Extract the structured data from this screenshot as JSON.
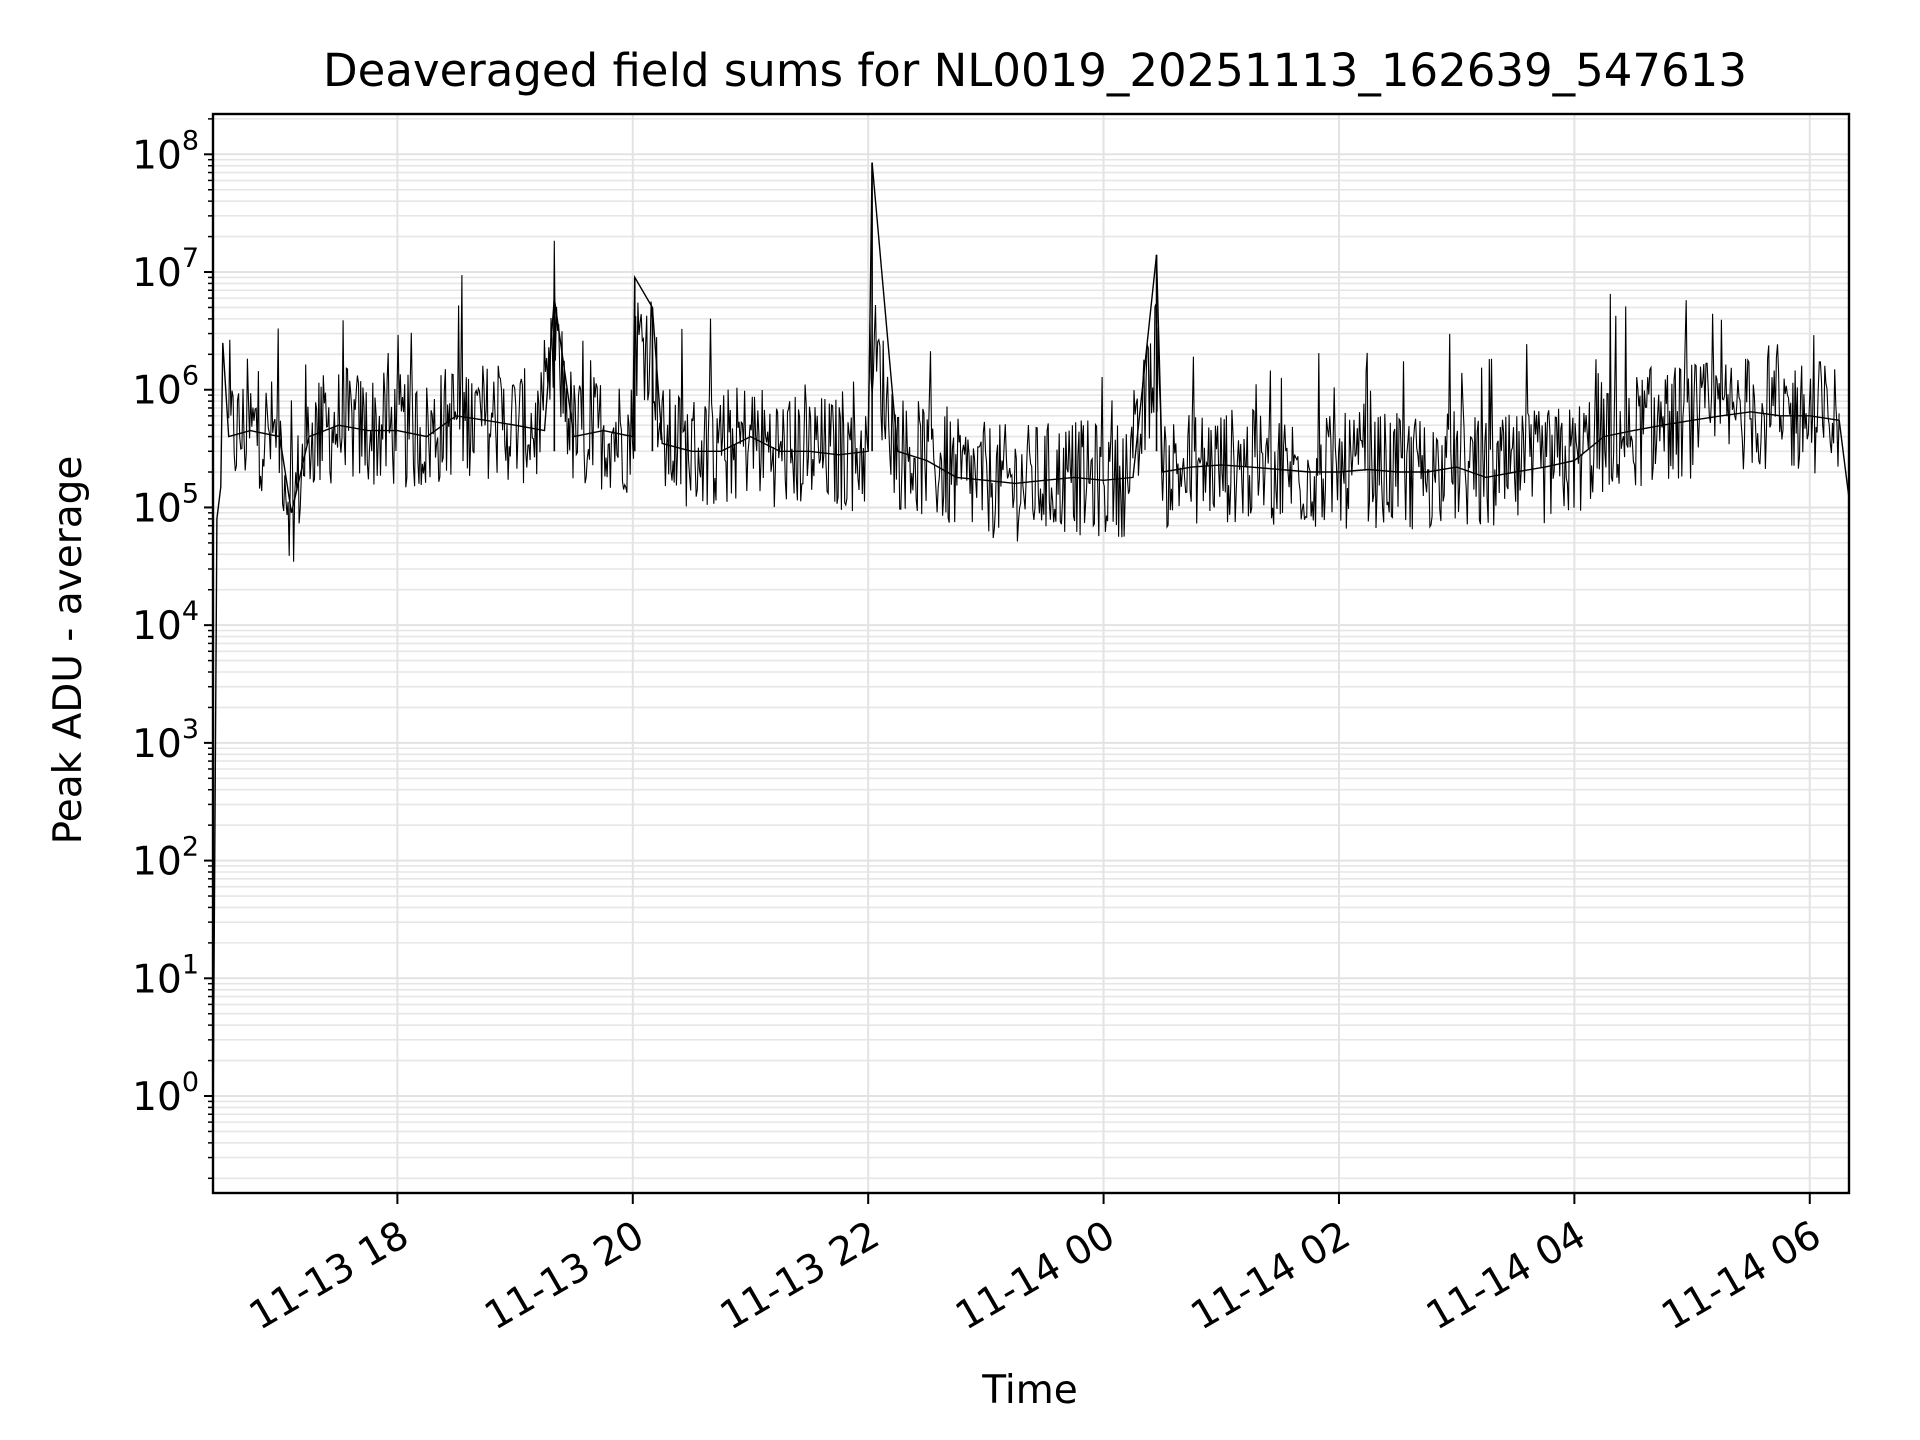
{
  "chart_data": {
    "type": "line",
    "title": "Deaveraged field sums for NL0019_20251113_162639_547613",
    "xlabel": "Time",
    "ylabel": "Peak ADU - average",
    "yscale": "log",
    "ylim": [
      0.15,
      220000000
    ],
    "y_ticks": [
      {
        "value": 1,
        "base": "10",
        "exp": "0"
      },
      {
        "value": 10,
        "base": "10",
        "exp": "1"
      },
      {
        "value": 100,
        "base": "10",
        "exp": "2"
      },
      {
        "value": 1000,
        "base": "10",
        "exp": "3"
      },
      {
        "value": 10000,
        "base": "10",
        "exp": "4"
      },
      {
        "value": 100000,
        "base": "10",
        "exp": "5"
      },
      {
        "value": 1000000,
        "base": "10",
        "exp": "6"
      },
      {
        "value": 10000000,
        "base": "10",
        "exp": "7"
      },
      {
        "value": 100000000,
        "base": "10",
        "exp": "8"
      }
    ],
    "xlim": [
      "2025-11-13T16:26",
      "2025-11-14T06:20"
    ],
    "x_ticks": [
      {
        "value": "2025-11-13T18:00",
        "label": "11-13 18"
      },
      {
        "value": "2025-11-13T20:00",
        "label": "11-13 20"
      },
      {
        "value": "2025-11-13T22:00",
        "label": "11-13 22"
      },
      {
        "value": "2025-11-14T00:00",
        "label": "11-14 00"
      },
      {
        "value": "2025-11-14T02:00",
        "label": "11-14 02"
      },
      {
        "value": "2025-11-14T04:00",
        "label": "11-14 04"
      },
      {
        "value": "2025-11-14T06:00",
        "label": "11-14 06"
      }
    ],
    "grid": true,
    "line_color": "#000000",
    "series": [
      {
        "x": [
          "2025-11-13T16:26",
          "2025-11-13T16:28",
          "2025-11-13T16:30",
          "2025-11-13T16:31",
          "2025-11-13T16:34",
          "2025-11-13T16:45",
          "2025-11-13T17:00",
          "2025-11-13T17:06",
          "2025-11-13T17:15",
          "2025-11-13T17:30",
          "2025-11-13T17:45",
          "2025-11-13T18:00",
          "2025-11-13T18:15",
          "2025-11-13T18:30",
          "2025-11-13T18:45",
          "2025-11-13T19:00",
          "2025-11-13T19:15",
          "2025-11-13T19:20",
          "2025-11-13T19:30",
          "2025-11-13T19:45",
          "2025-11-13T20:00",
          "2025-11-13T20:01",
          "2025-11-13T20:10",
          "2025-11-13T20:15",
          "2025-11-13T20:30",
          "2025-11-13T20:45",
          "2025-11-13T21:00",
          "2025-11-13T21:15",
          "2025-11-13T21:30",
          "2025-11-13T21:45",
          "2025-11-13T22:00",
          "2025-11-13T22:02",
          "2025-11-13T22:15",
          "2025-11-13T22:30",
          "2025-11-13T22:45",
          "2025-11-13T23:00",
          "2025-11-13T23:15",
          "2025-11-13T23:30",
          "2025-11-13T23:45",
          "2025-11-14T00:00",
          "2025-11-14T00:15",
          "2025-11-14T00:27",
          "2025-11-14T00:30",
          "2025-11-14T00:45",
          "2025-11-14T01:00",
          "2025-11-14T01:15",
          "2025-11-14T01:30",
          "2025-11-14T01:45",
          "2025-11-14T02:00",
          "2025-11-14T02:15",
          "2025-11-14T02:30",
          "2025-11-14T02:45",
          "2025-11-14T03:00",
          "2025-11-14T03:15",
          "2025-11-14T03:30",
          "2025-11-14T03:45",
          "2025-11-14T04:00",
          "2025-11-14T04:15",
          "2025-11-14T04:30",
          "2025-11-14T04:45",
          "2025-11-14T05:00",
          "2025-11-14T05:15",
          "2025-11-14T05:30",
          "2025-11-14T05:45",
          "2025-11-14T06:00",
          "2025-11-14T06:15",
          "2025-11-14T06:20"
        ],
        "values": [
          0.5,
          80000,
          150000,
          2500000,
          400000,
          450000,
          400000,
          90000,
          400000,
          500000,
          450000,
          450000,
          400000,
          600000,
          550000,
          500000,
          450000,
          6000000,
          400000,
          450000,
          400000,
          9000000,
          5000000,
          350000,
          300000,
          300000,
          400000,
          300000,
          300000,
          280000,
          300000,
          85000000,
          300000,
          250000,
          180000,
          170000,
          160000,
          170000,
          180000,
          170000,
          180000,
          14000000,
          200000,
          220000,
          230000,
          220000,
          210000,
          200000,
          200000,
          210000,
          200000,
          200000,
          220000,
          180000,
          200000,
          220000,
          250000,
          400000,
          450000,
          500000,
          550000,
          600000,
          650000,
          600000,
          600000,
          550000,
          120000
        ]
      }
    ]
  }
}
